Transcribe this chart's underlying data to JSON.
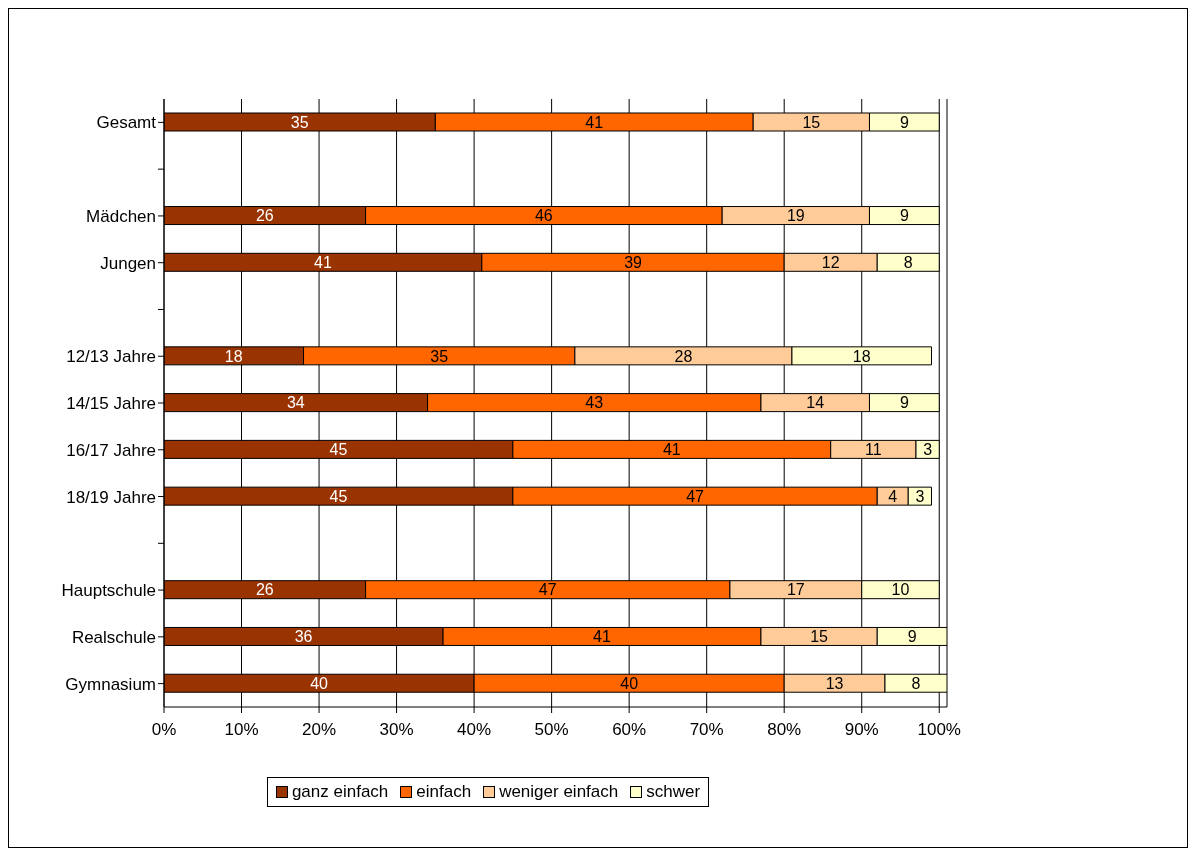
{
  "chart_data": {
    "type": "bar",
    "orientation": "horizontal",
    "stacked": true,
    "data_labels": true,
    "grid": "x",
    "legend": "bottom",
    "categories": [
      "Gesamt",
      null,
      "Mädchen",
      "Jungen",
      null,
      "12/13 Jahre",
      "14/15 Jahre",
      "16/17 Jahre",
      "18/19 Jahre",
      null,
      "Hauptschule",
      "Realschule",
      "Gymnasium"
    ],
    "xlim": [
      0,
      101
    ],
    "xticks": [
      {
        "value": 0,
        "label": "0%"
      },
      {
        "value": 10,
        "label": "10%"
      },
      {
        "value": 20,
        "label": "20%"
      },
      {
        "value": 30,
        "label": "30%"
      },
      {
        "value": 40,
        "label": "40%"
      },
      {
        "value": 50,
        "label": "50%"
      },
      {
        "value": 60,
        "label": "60%"
      },
      {
        "value": 70,
        "label": "70%"
      },
      {
        "value": 80,
        "label": "80%"
      },
      {
        "value": 90,
        "label": "90%"
      },
      {
        "value": 100,
        "label": "100%"
      }
    ],
    "series": [
      {
        "name": "ganz einfach",
        "color": "#993300",
        "values": [
          35,
          null,
          26,
          41,
          null,
          18,
          34,
          45,
          45,
          null,
          26,
          36,
          40
        ]
      },
      {
        "name": "einfach",
        "color": "#ff6600",
        "values": [
          41,
          null,
          46,
          39,
          null,
          35,
          43,
          41,
          47,
          null,
          47,
          41,
          40
        ]
      },
      {
        "name": "weniger einfach",
        "color": "#ffcc99",
        "values": [
          15,
          null,
          19,
          12,
          null,
          28,
          14,
          11,
          4,
          null,
          17,
          15,
          13
        ]
      },
      {
        "name": "schwer",
        "color": "#ffffcc",
        "values": [
          9,
          null,
          9,
          8,
          null,
          18,
          9,
          3,
          3,
          null,
          10,
          9,
          8
        ]
      }
    ]
  }
}
